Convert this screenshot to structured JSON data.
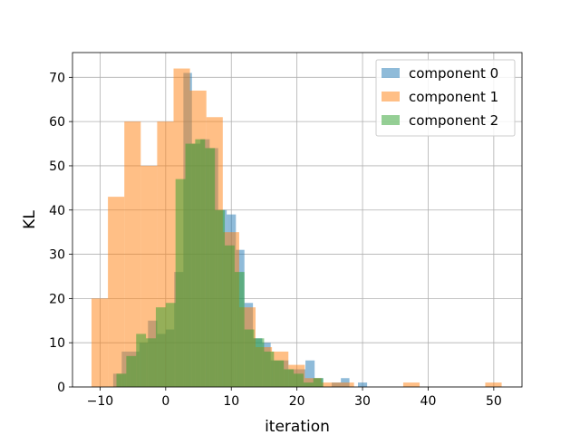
{
  "chart_data": {
    "type": "histogram",
    "title": "",
    "xlabel": "iteration",
    "ylabel": "KL",
    "xlim": [
      -14.2,
      54.3
    ],
    "ylim": [
      0,
      75.6
    ],
    "xticks": [
      -10,
      0,
      10,
      20,
      30,
      40,
      50
    ],
    "yticks": [
      0,
      10,
      20,
      30,
      40,
      50,
      60,
      70
    ],
    "grid": true,
    "legend_position": "top-right",
    "opacity": 0.5,
    "series": [
      {
        "name": "component 0",
        "color": "#1f77b4",
        "bins": [
          [
            -8.0,
            -6.7,
            3
          ],
          [
            -6.7,
            -5.3,
            8
          ],
          [
            -5.3,
            -4.0,
            8
          ],
          [
            -4.0,
            -2.7,
            10
          ],
          [
            -2.7,
            -1.3,
            15
          ],
          [
            -1.3,
            0.0,
            12
          ],
          [
            0.0,
            1.3,
            13
          ],
          [
            1.3,
            2.7,
            26
          ],
          [
            2.7,
            4.0,
            71
          ],
          [
            4.0,
            5.3,
            55
          ],
          [
            5.3,
            6.7,
            56
          ],
          [
            6.7,
            8.0,
            54
          ],
          [
            8.0,
            9.3,
            40
          ],
          [
            9.3,
            10.7,
            39
          ],
          [
            10.7,
            12.0,
            31
          ],
          [
            12.0,
            13.3,
            19
          ],
          [
            13.3,
            14.7,
            11
          ],
          [
            14.7,
            16.0,
            10
          ],
          [
            16.0,
            17.3,
            6
          ],
          [
            17.3,
            18.7,
            6
          ],
          [
            18.7,
            20.0,
            4
          ],
          [
            20.0,
            21.3,
            4
          ],
          [
            21.3,
            22.7,
            6
          ],
          [
            22.7,
            24.0,
            2
          ],
          [
            25.3,
            26.7,
            1
          ],
          [
            26.7,
            28.0,
            2
          ],
          [
            29.3,
            30.7,
            1
          ]
        ]
      },
      {
        "name": "component 1",
        "color": "#ff7f0e",
        "bins": [
          [
            -11.3,
            -8.8,
            20
          ],
          [
            -8.8,
            -6.3,
            43
          ],
          [
            -6.3,
            -3.8,
            60
          ],
          [
            -3.8,
            -1.3,
            50
          ],
          [
            -1.3,
            1.2,
            60
          ],
          [
            1.2,
            3.7,
            72
          ],
          [
            3.7,
            6.2,
            67
          ],
          [
            6.2,
            8.7,
            61
          ],
          [
            8.7,
            11.2,
            35
          ],
          [
            11.2,
            13.7,
            18
          ],
          [
            13.7,
            16.2,
            9
          ],
          [
            16.2,
            18.7,
            8
          ],
          [
            18.7,
            21.2,
            5
          ],
          [
            21.2,
            23.7,
            2
          ],
          [
            23.7,
            26.2,
            1
          ],
          [
            26.2,
            28.7,
            1
          ],
          [
            36.2,
            38.7,
            1
          ],
          [
            48.7,
            51.2,
            1
          ]
        ]
      },
      {
        "name": "component 2",
        "color": "#2ca02c",
        "bins": [
          [
            -7.5,
            -6.0,
            3
          ],
          [
            -6.0,
            -4.5,
            7
          ],
          [
            -4.5,
            -3.0,
            12
          ],
          [
            -3.0,
            -1.5,
            11
          ],
          [
            -1.5,
            0.0,
            18
          ],
          [
            0.0,
            1.5,
            19
          ],
          [
            1.5,
            3.0,
            47
          ],
          [
            3.0,
            4.5,
            55
          ],
          [
            4.5,
            6.0,
            56
          ],
          [
            6.0,
            7.5,
            54
          ],
          [
            7.5,
            9.0,
            40
          ],
          [
            9.0,
            10.5,
            32
          ],
          [
            10.5,
            12.0,
            26
          ],
          [
            12.0,
            13.5,
            13
          ],
          [
            13.5,
            15.0,
            11
          ],
          [
            15.0,
            16.5,
            8
          ],
          [
            16.5,
            18.0,
            6
          ],
          [
            18.0,
            19.5,
            4
          ],
          [
            19.5,
            21.0,
            3
          ],
          [
            21.0,
            22.5,
            1
          ],
          [
            22.5,
            24.0,
            2
          ]
        ]
      }
    ]
  }
}
